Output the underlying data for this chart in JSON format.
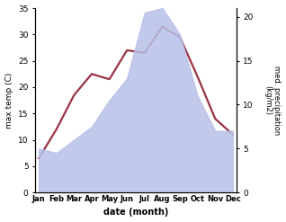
{
  "months": [
    "Jan",
    "Feb",
    "Mar",
    "Apr",
    "May",
    "Jun",
    "Jul",
    "Aug",
    "Sep",
    "Oct",
    "Nov",
    "Dec"
  ],
  "month_positions": [
    0,
    1,
    2,
    3,
    4,
    5,
    6,
    7,
    8,
    9,
    10,
    11
  ],
  "max_temp": [
    6.5,
    12.0,
    18.5,
    22.5,
    21.5,
    27.0,
    26.5,
    31.5,
    29.5,
    22.0,
    14.0,
    11.0
  ],
  "precipitation": [
    5.0,
    4.5,
    6.0,
    7.5,
    10.5,
    13.0,
    20.5,
    21.0,
    18.0,
    11.0,
    7.0,
    7.0
  ],
  "temp_color": "#993344",
  "precip_color": "#b8c0e8",
  "precip_alpha": 0.85,
  "temp_ylim": [
    0,
    35
  ],
  "precip_ylim": [
    0,
    21
  ],
  "temp_yticks": [
    0,
    5,
    10,
    15,
    20,
    25,
    30,
    35
  ],
  "precip_yticks": [
    0,
    5,
    10,
    15,
    20
  ],
  "ylabel_left": "max temp (C)",
  "ylabel_right": "med. precipitation\n(kg/m2)",
  "xlabel": "date (month)",
  "background_color": "#ffffff",
  "linewidth": 1.6,
  "figsize": [
    3.18,
    2.47
  ],
  "dpi": 100
}
